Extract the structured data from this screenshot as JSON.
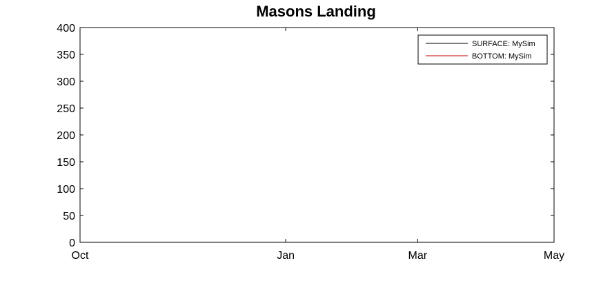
{
  "chart_data": {
    "type": "line",
    "title": "Masons Landing",
    "xlabel": "",
    "ylabel": "",
    "ylim": [
      0,
      400
    ],
    "yticks": [
      0,
      50,
      100,
      150,
      200,
      250,
      300,
      350,
      400
    ],
    "xticks": [
      {
        "label": "Oct",
        "date": "Oct 1"
      },
      {
        "label": "Jan",
        "date": "Jan 1"
      },
      {
        "label": "Mar",
        "date": "Mar 1"
      },
      {
        "label": "May",
        "date": "May 1"
      }
    ],
    "xlim": [
      "Oct 1",
      "May 1"
    ],
    "grid": false,
    "legend_position": "top-right",
    "series": [
      {
        "name": "SURFACE: MySim",
        "color": "#000000",
        "values": []
      },
      {
        "name": "BOTTOM: MySim",
        "color": "#cc0000",
        "values": []
      }
    ]
  }
}
